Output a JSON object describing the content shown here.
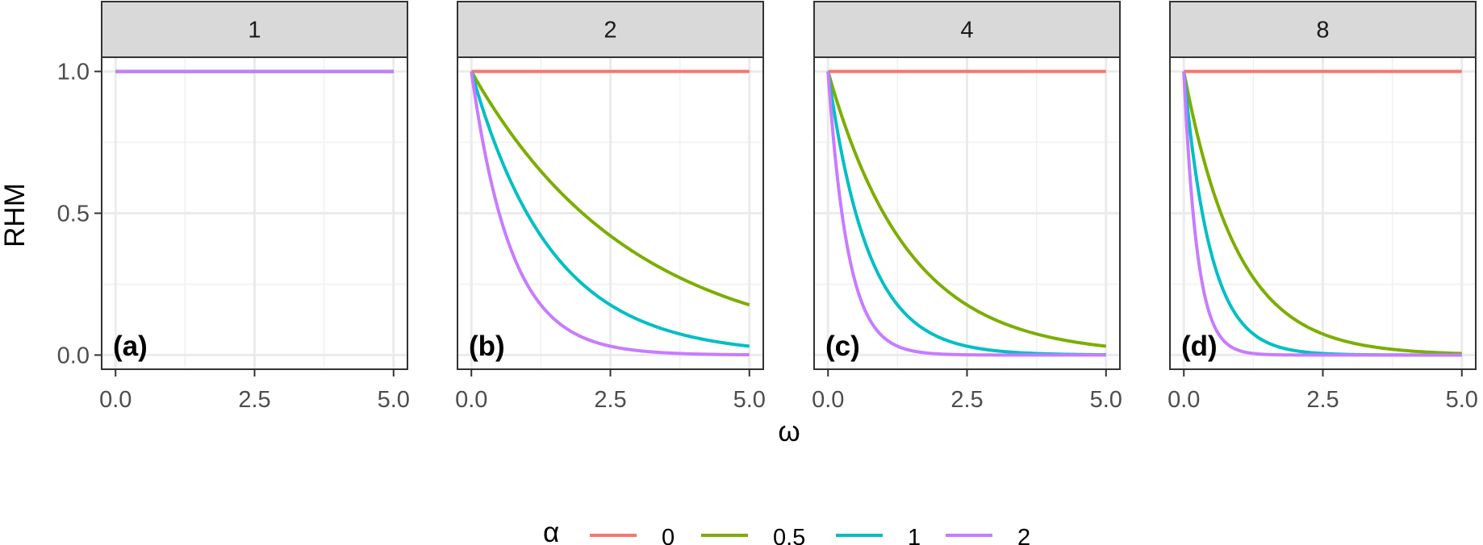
{
  "chart_data": {
    "type": "line",
    "facet_var": "",
    "facets": [
      {
        "strip": "1",
        "tag": "(a)",
        "k": 1
      },
      {
        "strip": "2",
        "tag": "(b)",
        "k": 2
      },
      {
        "strip": "4",
        "tag": "(c)",
        "k": 4
      },
      {
        "strip": "8",
        "tag": "(d)",
        "k": 8
      }
    ],
    "xlabel": "ω",
    "ylabel": "RHM",
    "xlim": [
      -0.25,
      5.25
    ],
    "ylim": [
      -0.05,
      1.05
    ],
    "x_ticks": [
      "0.0",
      "2.5",
      "5.0"
    ],
    "y_ticks": [
      "0.0",
      "0.5",
      "1.0"
    ],
    "x_tick_values": [
      0,
      2.5,
      5
    ],
    "y_tick_values": [
      0,
      0.5,
      1
    ],
    "grid": true,
    "legend": {
      "title": "α",
      "position": "bottom"
    },
    "series": [
      {
        "name": "0",
        "alpha": 0,
        "color": "#F8766D"
      },
      {
        "name": "0.5",
        "alpha": 0.5,
        "color": "#7CAE00"
      },
      {
        "name": "1",
        "alpha": 1,
        "color": "#00BFC4"
      },
      {
        "name": "2",
        "alpha": 2,
        "color": "#C77CFF"
      }
    ],
    "curve_formula": "RHM = k^(-alpha * omega)",
    "x_sample_range": [
      0,
      5
    ]
  }
}
